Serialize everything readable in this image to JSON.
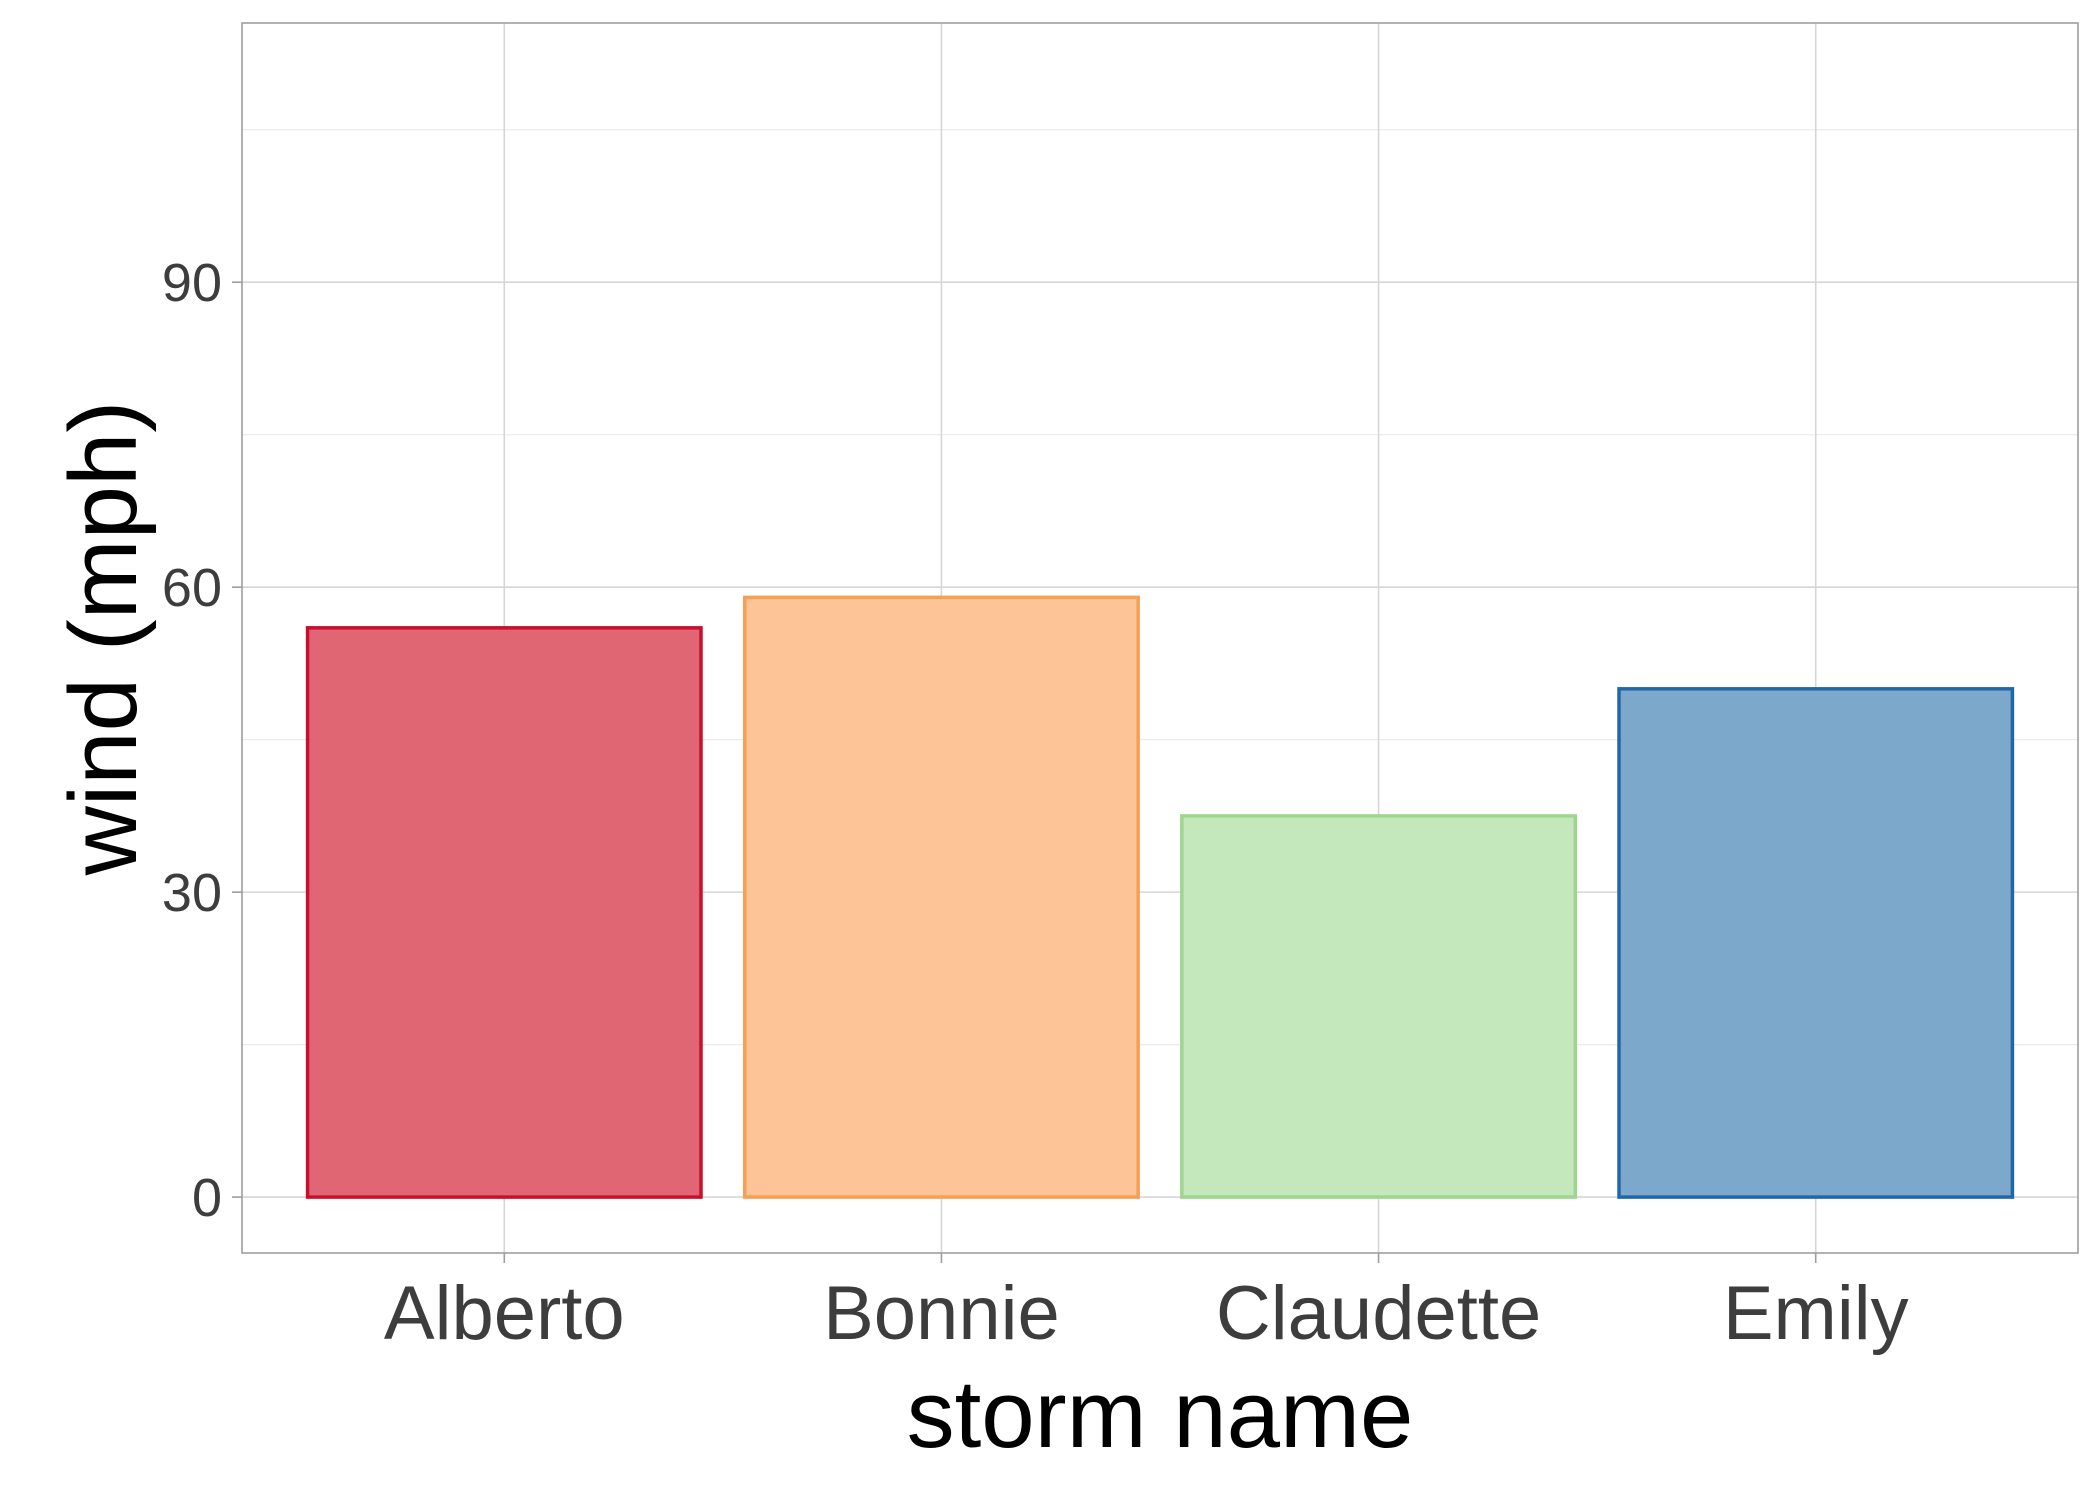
{
  "chart_data": {
    "type": "bar",
    "categories": [
      "Alberto",
      "Bonnie",
      "Claudette",
      "Emily"
    ],
    "values": [
      56,
      59,
      37.5,
      50
    ],
    "xlabel": "storm name",
    "ylabel": "wind (mph)",
    "ylim": [
      -5.5,
      115.5
    ],
    "yticks": [
      "0",
      "30",
      "60",
      "90"
    ],
    "ytick_values": [
      0,
      30,
      60,
      90
    ],
    "grid": true,
    "legend": "none",
    "colors": {
      "fill": [
        "#e06673",
        "#fcc497",
        "#c4e8bc",
        "#7ca8cc"
      ],
      "outline": [
        "#c8102e",
        "#f6a056",
        "#9fd68f",
        "#2167a8"
      ]
    }
  }
}
